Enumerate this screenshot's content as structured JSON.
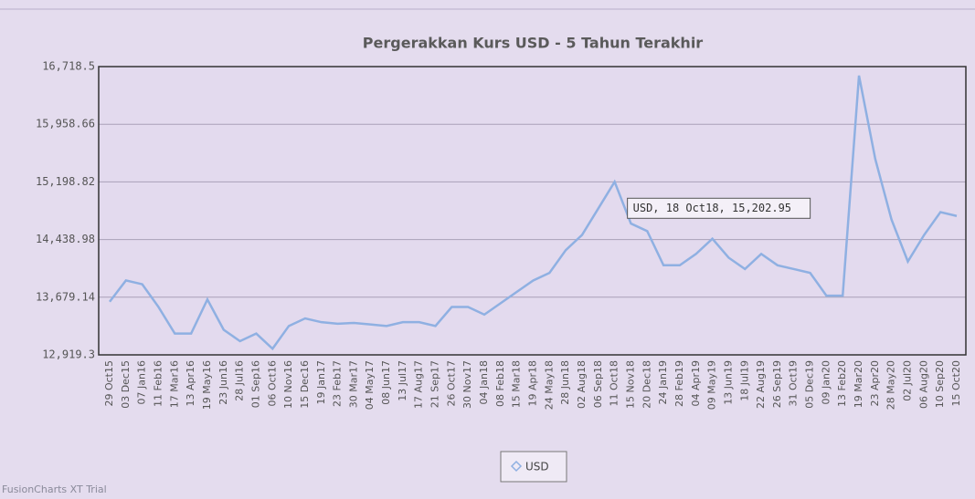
{
  "chart_data": {
    "type": "line",
    "title": "Pergerakkan Kurs USD - 5 Tahun Terakhir",
    "categories": [
      "29 Oct15",
      "03 Dec15",
      "07 Jan16",
      "11 Feb16",
      "17 Mar16",
      "13 Apr16",
      "19 May16",
      "23 Jun16",
      "28 Jul16",
      "01 Sep16",
      "06 Oct16",
      "10 Nov16",
      "15 Dec16",
      "19 Jan17",
      "23 Feb17",
      "30 Mar17",
      "04 May17",
      "08 Jun17",
      "13 Jul17",
      "17 Aug17",
      "21 Sep17",
      "26 Oct17",
      "30 Nov17",
      "04 Jan18",
      "08 Feb18",
      "15 Mar18",
      "19 Apr18",
      "24 May18",
      "28 Jun18",
      "02 Aug18",
      "06 Sep18",
      "11 Oct18",
      "15 Nov18",
      "20 Dec18",
      "24 Jan19",
      "28 Feb19",
      "04 Apr19",
      "09 May19",
      "13 Jun19",
      "18 Jul19",
      "22 Aug19",
      "26 Sep19",
      "31 Oct19",
      "05 Dec19",
      "09 Jan20",
      "13 Feb20",
      "19 Mar20",
      "23 Apr20",
      "28 May20",
      "02 Jul20",
      "06 Aug20",
      "10 Sep20",
      "15 Oct20"
    ],
    "series": [
      {
        "name": "USD",
        "color": "#8fb0e2",
        "values": [
          13620,
          13900,
          13850,
          13550,
          13200,
          13200,
          13650,
          13250,
          13100,
          13200,
          13000,
          13300,
          13400,
          13350,
          13330,
          13340,
          13320,
          13300,
          13350,
          13350,
          13300,
          13550,
          13550,
          13450,
          13600,
          13750,
          13900,
          14000,
          14300,
          14500,
          14850,
          15200,
          14650,
          14550,
          14100,
          14100,
          14250,
          14450,
          14200,
          14050,
          14250,
          14100,
          14050,
          14000,
          13700,
          13700,
          16600,
          15500,
          14700,
          14150,
          14500,
          14800,
          14750
        ]
      }
    ],
    "ylim": [
      12919.3,
      16718.5
    ],
    "yticks": [
      {
        "value": 12919.3,
        "label": "12,919.3"
      },
      {
        "value": 13679.14,
        "label": "13,679.14"
      },
      {
        "value": 14438.98,
        "label": "14,438.98"
      },
      {
        "value": 15198.82,
        "label": "15,198.82"
      },
      {
        "value": 15958.66,
        "label": "15,958.66"
      },
      {
        "value": 16718.5,
        "label": "16,718.5"
      }
    ],
    "grid": true,
    "annotation": "USD, 18 Oct18, 15,202.95",
    "footer": "FusionCharts XT Trial"
  }
}
